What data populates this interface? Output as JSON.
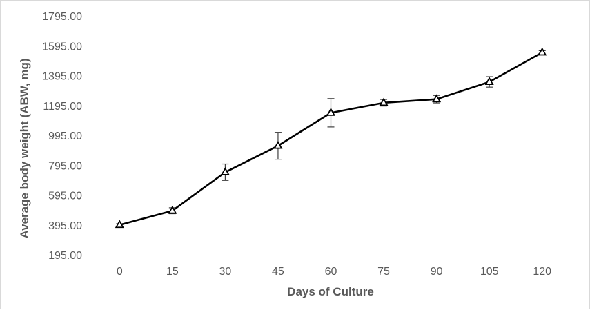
{
  "chart_data": {
    "type": "line",
    "title": "",
    "xlabel": "Days of Culture",
    "ylabel": "Average body weight (ABW, mg)",
    "categories": [
      "0",
      "15",
      "30",
      "45",
      "60",
      "75",
      "90",
      "105",
      "120"
    ],
    "series": [
      {
        "name": "",
        "values": [
          395,
          490,
          748,
          925,
          1146,
          1213,
          1237,
          1353,
          1550
        ],
        "error": [
          8,
          20,
          55,
          90,
          95,
          22,
          25,
          35,
          12
        ],
        "marker": "triangle-open",
        "color": "#000000"
      }
    ],
    "ylim": [
      195,
      1795
    ],
    "yticks": [
      "195.00",
      "395.00",
      "595.00",
      "795.00",
      "995.00",
      "1195.00",
      "1395.00",
      "1595.00",
      "1795.00"
    ],
    "grid": false,
    "legend": "none"
  }
}
